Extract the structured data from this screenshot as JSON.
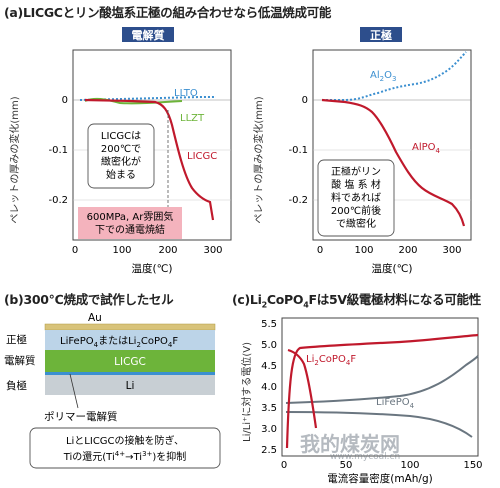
{
  "panel_a": {
    "title": "(a)LICGCとリン酸塩系正極の組み合わせなら低温焼成可能",
    "left": {
      "header": "電解質",
      "ylabel": "ペレットの厚みの変化(mm)",
      "xlabel": "温度(℃)",
      "series_labels": {
        "llto": "LLTO",
        "llzt": "LLZT",
        "licgc": "LICGC"
      },
      "note_lines": [
        "LICGCは",
        "200℃で",
        "緻密化が",
        "始まる"
      ],
      "condition_lines": [
        "600MPa, Ar雰囲気",
        "下での通電焼結"
      ],
      "yticks": [
        "0",
        "-0.1",
        "-0.2"
      ],
      "xticks": [
        "0",
        "100",
        "200",
        "300"
      ]
    },
    "right": {
      "header": "正極",
      "ylabel": "ペレットの厚みの変化(mm)",
      "xlabel": "温度(℃)",
      "series_labels": {
        "al2o3_main": "Al",
        "al2o3_sub1": "2",
        "al2o3_mid": "O",
        "al2o3_sub2": "3",
        "alpo4_main": "AlPO",
        "alpo4_sub": "4"
      },
      "note_lines": [
        "正極がリン",
        "酸 塩 系 材",
        "料であれば",
        "200℃前後",
        "で緻密化"
      ],
      "yticks": [
        "0",
        "-0.1",
        "-0.2"
      ],
      "xticks": [
        "0",
        "100",
        "200",
        "300"
      ]
    }
  },
  "panel_b": {
    "title": "(b)300℃焼成で試作したセル",
    "layers": {
      "au": "Au",
      "cathode_a": "LiFePO",
      "cathode_a_sub": "4",
      "cathode_b": "またはLi",
      "cathode_b_sub": "2",
      "cathode_c": "CoPO",
      "cathode_c_sub": "4",
      "cathode_d": "F",
      "electrolyte": "LICGC",
      "anode": "Li"
    },
    "side_labels": {
      "cathode": "正極",
      "electrolyte": "電解質",
      "anode": "負極"
    },
    "polymer": "ポリマー電解質",
    "note_line1": "LiとLICGCの接触を防ぎ、",
    "note_line2a": "Tiの還元(Ti",
    "note_line2b": "4+",
    "note_line2c": "→Ti",
    "note_line2d": "3+",
    "note_line2e": ")を抑制"
  },
  "panel_c": {
    "title_a": "(c)Li",
    "title_sub1": "2",
    "title_b": "CoPO",
    "title_sub2": "4",
    "title_c": "Fは5V級電極材料になる可能性",
    "ylabel": "Li/Li⁺に対する電位(V)",
    "xlabel": "電流容量密度(mAh/g)",
    "yticks": [
      "5.5",
      "5.0",
      "4.5",
      "4.0",
      "3.5",
      "3.0",
      "2.5"
    ],
    "xticks": [
      "0",
      "50",
      "100",
      "150"
    ],
    "series_labels": {
      "co_a": "Li",
      "co_sub1": "2",
      "co_b": "CoPO",
      "co_sub2": "4",
      "co_c": "F",
      "fe_a": "LiFePO",
      "fe_sub": "4"
    }
  },
  "watermark": "我的煤炭网",
  "watermark_url": "www.mycoal.cn",
  "colors": {
    "red": "#c0192c",
    "green": "#6db43a",
    "blue_dot": "#3b8fd0",
    "gray": "#6a7680",
    "pink": "#f4b3bd",
    "header_blue": "#2d4e8c"
  }
}
